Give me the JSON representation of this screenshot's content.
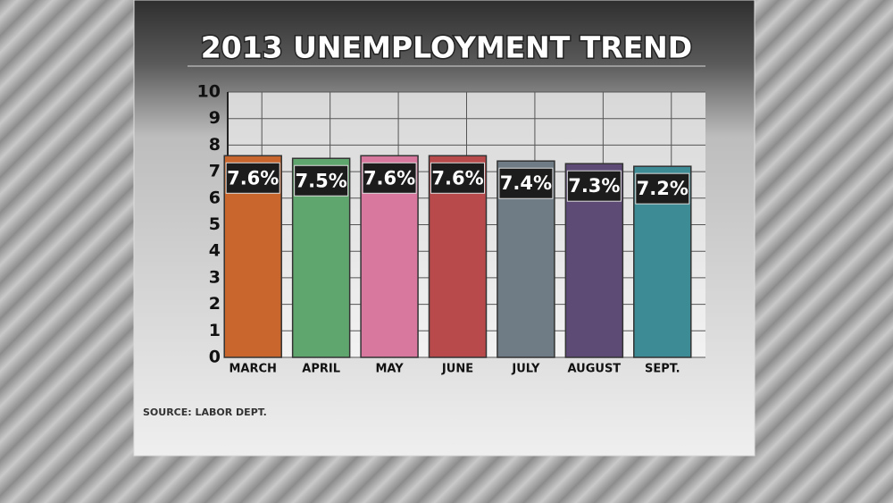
{
  "chart_data": {
    "type": "bar",
    "title": "2013 UNEMPLOYMENT TREND",
    "categories": [
      "MARCH",
      "APRIL",
      "MAY",
      "JUNE",
      "JULY",
      "AUGUST",
      "SEPT."
    ],
    "values": [
      7.6,
      7.5,
      7.6,
      7.6,
      7.4,
      7.3,
      7.2
    ],
    "value_labels": [
      "7.6%",
      "7.5%",
      "7.6%",
      "7.6%",
      "7.4%",
      "7.3%",
      "7.2%"
    ],
    "colors": [
      "#c8662e",
      "#5fa56e",
      "#d9789f",
      "#b84a4c",
      "#6f7b85",
      "#5d4a75",
      "#3d8b95"
    ],
    "ylim": [
      0,
      10
    ],
    "yticks": [
      0,
      1,
      2,
      3,
      4,
      5,
      6,
      7,
      8,
      9,
      10
    ],
    "grid": true,
    "source": "SOURCE: LABOR DEPT."
  }
}
